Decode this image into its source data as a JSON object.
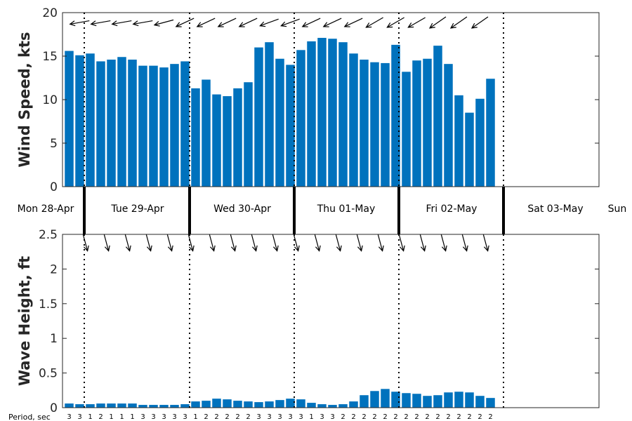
{
  "chart_data": [
    {
      "type": "bar",
      "ylabel": "Wind Speed, kts",
      "ylim": [
        0,
        20
      ],
      "yticks": [
        "0",
        "5",
        "10",
        "15",
        "20"
      ],
      "values": [
        15.6,
        15.1,
        15.3,
        14.4,
        14.6,
        14.9,
        14.6,
        13.9,
        13.9,
        13.7,
        14.1,
        14.4,
        11.3,
        12.3,
        10.6,
        10.4,
        11.3,
        12.0,
        16.0,
        16.6,
        14.7,
        14.0,
        15.7,
        16.7,
        17.1,
        17.0,
        16.6,
        15.3,
        14.6,
        14.3,
        14.2,
        16.3,
        13.2,
        14.5,
        14.7,
        16.2,
        14.1,
        10.5,
        8.5,
        10.1,
        12.4
      ],
      "wind_direction_arrow_angles_deg": [
        190,
        190,
        190,
        190,
        190,
        190,
        190,
        190,
        195,
        195,
        200,
        205,
        205,
        205,
        205,
        205,
        205,
        205,
        200,
        200,
        200,
        200,
        205,
        205,
        205,
        205,
        205,
        205,
        210,
        210,
        210,
        210,
        210,
        210,
        210,
        215,
        215,
        215,
        215,
        215,
        215
      ],
      "grid": false
    },
    {
      "type": "bar",
      "ylabel": "Wave Height, ft",
      "ylim": [
        0,
        2.5
      ],
      "yticks": [
        "0",
        "0.5",
        "1",
        "1.5",
        "2",
        "2.5"
      ],
      "values": [
        0.06,
        0.05,
        0.05,
        0.06,
        0.06,
        0.06,
        0.06,
        0.04,
        0.04,
        0.04,
        0.04,
        0.05,
        0.09,
        0.1,
        0.13,
        0.12,
        0.1,
        0.09,
        0.08,
        0.09,
        0.11,
        0.13,
        0.12,
        0.07,
        0.05,
        0.04,
        0.05,
        0.09,
        0.18,
        0.24,
        0.27,
        0.23,
        0.21,
        0.2,
        0.17,
        0.18,
        0.22,
        0.23,
        0.22,
        0.17,
        0.14
      ],
      "wave_direction_arrow_angles_deg": [
        345,
        345,
        345,
        345,
        345,
        345,
        345,
        345,
        345,
        345,
        345,
        345,
        345,
        345,
        345,
        345,
        345,
        345,
        345,
        345,
        345,
        345,
        345,
        345,
        345,
        345,
        345,
        345,
        345,
        345,
        345,
        345,
        345,
        345,
        345,
        345,
        345,
        345,
        345,
        345,
        345
      ],
      "period_title": "Period, sec",
      "periods": [
        "3",
        "3",
        "1",
        "2",
        "1",
        "1",
        "1",
        "3",
        "3",
        "3",
        "3",
        "3",
        "1",
        "2",
        "2",
        "2",
        "2",
        "2",
        "3",
        "3",
        "3",
        "3",
        "3",
        "1",
        "3",
        "3",
        "2",
        "2",
        "2",
        "2",
        "2",
        "2",
        "2",
        "2",
        "2",
        "2",
        "2",
        "2",
        "2",
        "2",
        "2"
      ],
      "grid": false
    }
  ],
  "days": [
    "Mon 28-Apr",
    "Tue 29-Apr",
    "Wed 30-Apr",
    "Thu 01-May",
    "Fri 02-May",
    "Sat 03-May",
    "Sun"
  ],
  "colors": {
    "bar": "#0072bd",
    "axis": "#262626",
    "day_line": "#000000"
  }
}
